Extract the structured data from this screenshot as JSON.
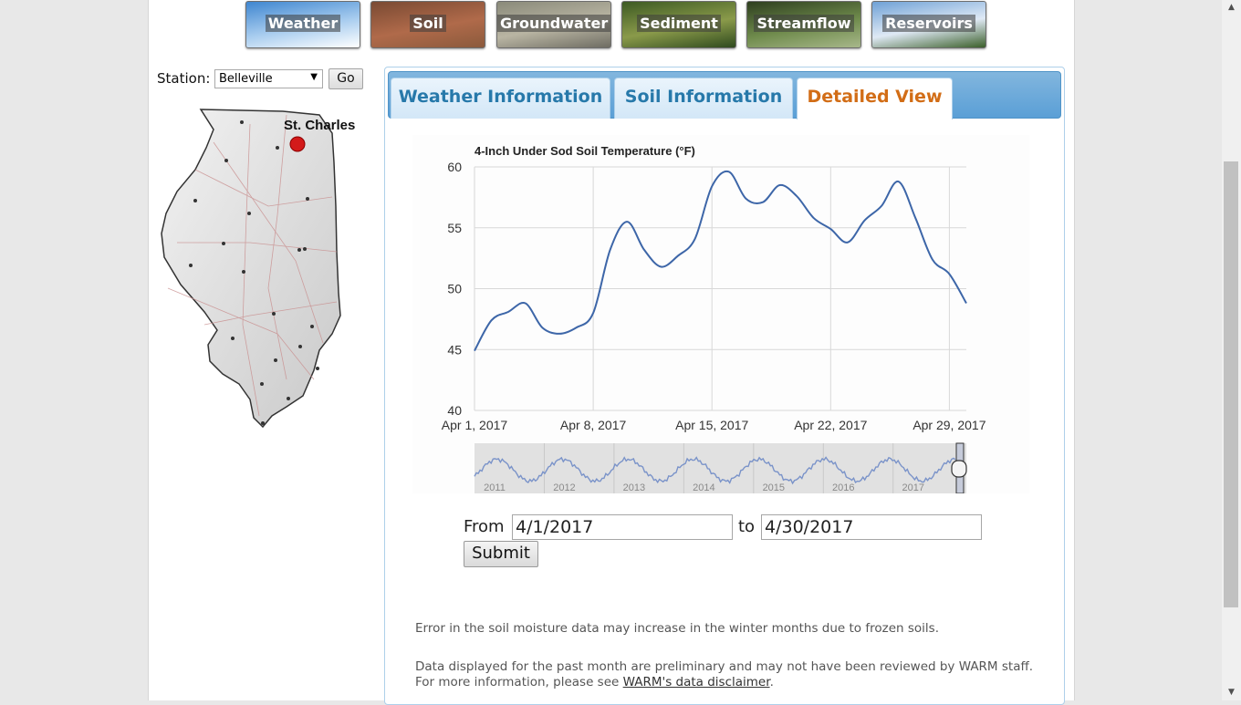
{
  "nav": [
    {
      "label": "Weather",
      "colors": [
        "#3f86d0",
        "#a9cdef",
        "#ffffff"
      ]
    },
    {
      "label": "Soil",
      "colors": [
        "#7a4a33",
        "#b06a4a",
        "#8b5a3c"
      ]
    },
    {
      "label": "Groundwater",
      "colors": [
        "#8a8a7a",
        "#b9b5a3",
        "#6e6c62"
      ]
    },
    {
      "label": "Sediment",
      "colors": [
        "#3d5a23",
        "#8a9a4a",
        "#2f4a1e"
      ]
    },
    {
      "label": "Streamflow",
      "colors": [
        "#2e3f1f",
        "#6f8b4c",
        "#a7b78a"
      ]
    },
    {
      "label": "Reservoirs",
      "colors": [
        "#6fa1d6",
        "#dfe9f5",
        "#3b5f2a"
      ]
    }
  ],
  "station": {
    "label": "Station:",
    "selected": "Belleville",
    "go_label": "Go"
  },
  "map": {
    "highlight_label": "St. Charles"
  },
  "tabs": {
    "weather": "Weather Information",
    "soil": "Soil Information",
    "detailed": "Detailed View"
  },
  "chart_data": {
    "type": "line",
    "title": "4-Inch Under Sod Soil Temperature (°F)",
    "xlabel": "",
    "ylabel": "",
    "ylim": [
      40,
      60
    ],
    "yticks": [
      40,
      45,
      50,
      55,
      60
    ],
    "xticks": [
      "Apr 1, 2017",
      "Apr 8, 2017",
      "Apr 15, 2017",
      "Apr 22, 2017",
      "Apr 29, 2017"
    ],
    "xlim": [
      "2017-04-01",
      "2017-04-30"
    ],
    "grid": true,
    "line_color": "#3d66a8",
    "series": [
      {
        "x": [
          "2017-04-01",
          "2017-04-02",
          "2017-04-03",
          "2017-04-04",
          "2017-04-05",
          "2017-04-06",
          "2017-04-07",
          "2017-04-08",
          "2017-04-09",
          "2017-04-10",
          "2017-04-11",
          "2017-04-12",
          "2017-04-13",
          "2017-04-14",
          "2017-04-15",
          "2017-04-16",
          "2017-04-17",
          "2017-04-18",
          "2017-04-19",
          "2017-04-20",
          "2017-04-21",
          "2017-04-22",
          "2017-04-23",
          "2017-04-24",
          "2017-04-25",
          "2017-04-26",
          "2017-04-27",
          "2017-04-28",
          "2017-04-29",
          "2017-04-30"
        ],
        "values": [
          44.9,
          47.4,
          48.1,
          48.8,
          46.8,
          46.3,
          46.8,
          48.0,
          53.2,
          55.5,
          53.2,
          51.8,
          52.7,
          54.1,
          58.4,
          59.6,
          57.4,
          57.1,
          58.5,
          57.6,
          55.8,
          54.9,
          53.8,
          55.6,
          56.8,
          58.8,
          55.8,
          52.4,
          51.2,
          48.8
        ]
      }
    ],
    "navigator": {
      "labels": [
        "2011",
        "2012",
        "2013",
        "2014",
        "2015",
        "2016",
        "2017"
      ]
    }
  },
  "form": {
    "from_label": "From",
    "from_value": "4/1/2017",
    "to_label": "to",
    "to_value": "4/30/2017",
    "submit_label": "Submit"
  },
  "notes": {
    "winter": "Error in the soil moisture data may increase in the winter months due to frozen soils.",
    "preliminary": "Data displayed for the past month are preliminary and may not have been reviewed by WARM staff. For more information, please see",
    "link": "WARM's data disclaimer",
    "end": "."
  }
}
